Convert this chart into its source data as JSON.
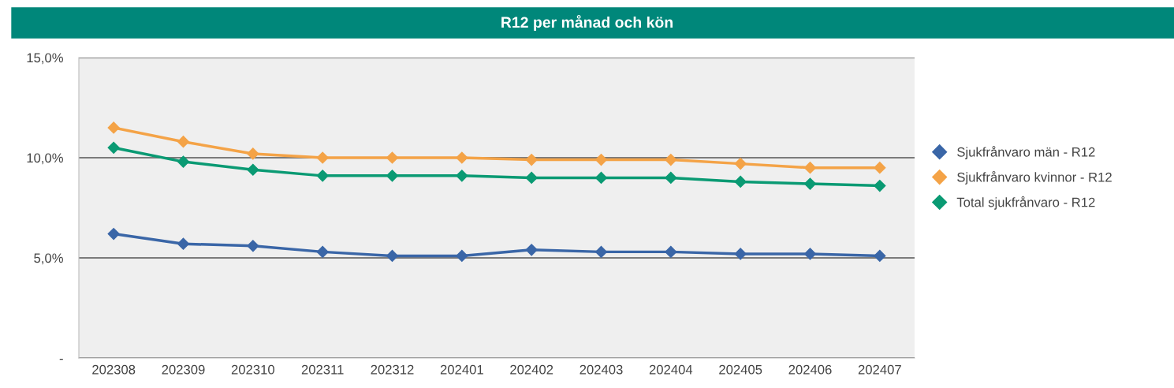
{
  "chart_data": {
    "type": "line",
    "title": "R12 per månad och kön",
    "categories": [
      "202308",
      "202309",
      "202310",
      "202311",
      "202312",
      "202401",
      "202402",
      "202403",
      "202404",
      "202405",
      "202406",
      "202407"
    ],
    "series": [
      {
        "name": "Sjukfrånvaro män - R12",
        "color": "#3a66a7",
        "values": [
          6.2,
          5.7,
          5.6,
          5.3,
          5.1,
          5.1,
          5.4,
          5.3,
          5.3,
          5.2,
          5.2,
          5.1
        ]
      },
      {
        "name": "Sjukfrånvaro kvinnor - R12",
        "color": "#f4a347",
        "values": [
          11.5,
          10.8,
          10.2,
          10.0,
          10.0,
          10.0,
          9.9,
          9.9,
          9.9,
          9.7,
          9.5,
          9.5
        ]
      },
      {
        "name": "Total sjukfrånvaro - R12",
        "color": "#0a9a73",
        "values": [
          10.5,
          9.8,
          9.4,
          9.1,
          9.1,
          9.1,
          9.0,
          9.0,
          9.0,
          8.8,
          8.7,
          8.6
        ]
      }
    ],
    "ylim": [
      0,
      15
    ],
    "yticks": [
      {
        "value": 0,
        "label": "-"
      },
      {
        "value": 5,
        "label": "5,0%"
      },
      {
        "value": 10,
        "label": "10,0%"
      },
      {
        "value": 15,
        "label": "15,0%"
      }
    ],
    "grid": "y",
    "legend": "right",
    "marker": "diamond",
    "line_style": "solid"
  }
}
